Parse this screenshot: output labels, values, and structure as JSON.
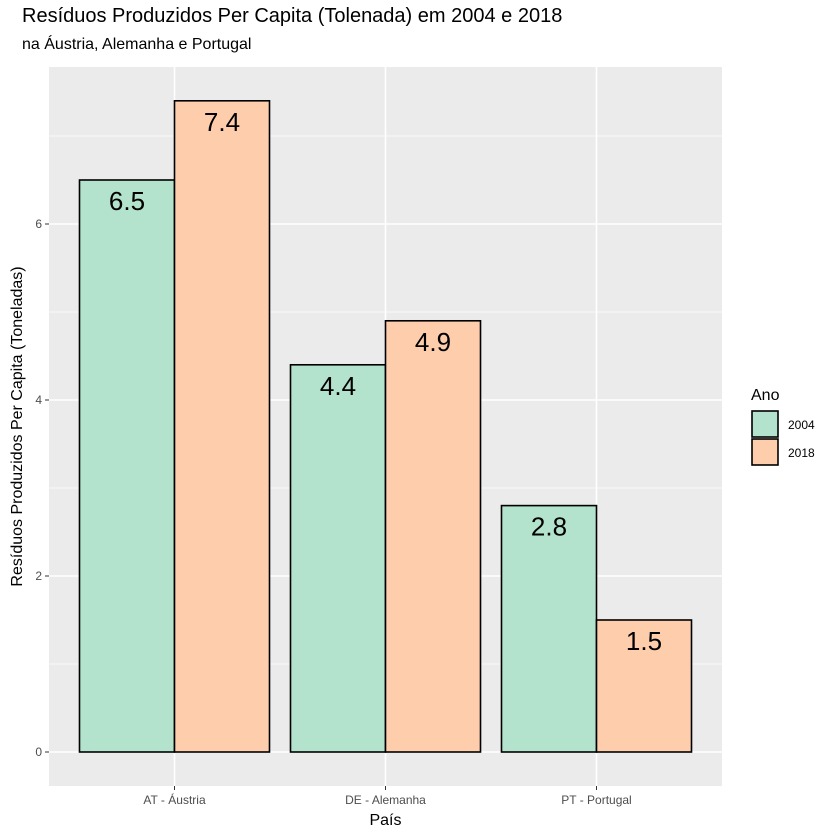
{
  "chart_data": {
    "type": "bar",
    "title": "Resíduos Produzidos Per Capita (Tolenada) em 2004 e 2018",
    "subtitle": "na Áustria, Alemanha e Portugal",
    "xlabel": "País",
    "ylabel": "Resíduos Produzidos Per Capita (Toneladas)",
    "categories": [
      "AT - Áustria",
      "DE - Alemanha",
      "PT - Portugal"
    ],
    "series": [
      {
        "name": "2004",
        "values": [
          6.5,
          4.4,
          2.8
        ],
        "color": "#b3e2cd"
      },
      {
        "name": "2018",
        "values": [
          7.4,
          4.9,
          1.5
        ],
        "color": "#fdcdac"
      }
    ],
    "data_labels": [
      [
        "6.5",
        "4.4",
        "2.8"
      ],
      [
        "7.4",
        "4.9",
        "1.5"
      ]
    ],
    "yticks": [
      0,
      2,
      4,
      6
    ],
    "ytick_labels": [
      "0",
      "2",
      "4",
      "6"
    ],
    "ylim": [
      -0.37,
      7.77
    ],
    "grid": true,
    "legend": {
      "title": "Ano",
      "position": "right"
    },
    "colors": {
      "panel_background": "#ebebeb",
      "grid": "#ffffff",
      "bar_outline": "#000000"
    }
  }
}
